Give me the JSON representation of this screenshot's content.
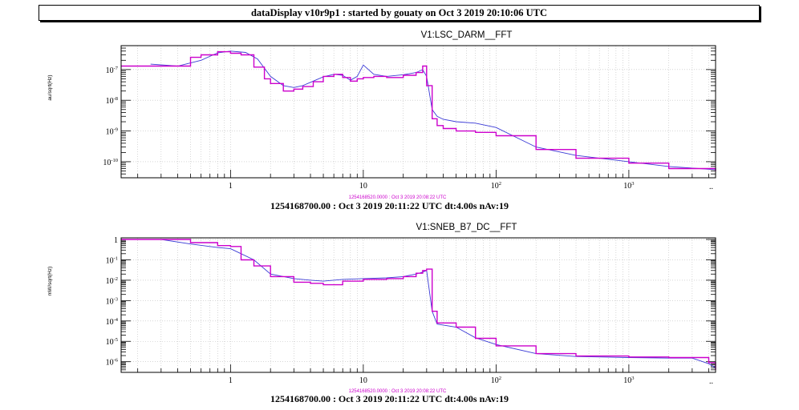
{
  "header": {
    "title": "dataDisplay v10r9p1 : started by gouaty on Oct  3 2019 20:10:06 UTC"
  },
  "colors": {
    "live": "#3b3bd6",
    "reference": "#cc00cc",
    "grid": "#bdbdbd",
    "frame": "#000000"
  },
  "chart_data": [
    {
      "type": "line",
      "title": "V1:LSC_DARM__FFT",
      "ylabel": "au/sqrt(Hz)",
      "xscale": "log",
      "yscale": "log",
      "xlim": [
        0.15,
        4500
      ],
      "ylim": [
        3e-11,
        6e-07
      ],
      "grid": true,
      "x_tick_labels": [
        "1",
        "10",
        "10^2",
        "10^3"
      ],
      "y_tick_labels": [
        "10^-7",
        "10^-8",
        "10^-9",
        "10^-10"
      ],
      "reference_label": "1254168520.0000 : Oct  3 2019 20:08:22 UTC",
      "footer": "1254168700.00 : Oct  3 2019 20:11:22 UTC dt:4.00s nAv:19",
      "axis_more_marker": "..",
      "series": [
        {
          "color": "#3b3bd6",
          "x": [
            0.25,
            0.4,
            0.6,
            0.8,
            1.0,
            1.3,
            1.6,
            2.0,
            2.5,
            3.0,
            3.5,
            4.2,
            5.0,
            6.0,
            7.0,
            8.0,
            9.0,
            10.0,
            12.0,
            15.0,
            20.0,
            25.0,
            28.0,
            30.0,
            33.0,
            36.0,
            40.0,
            50.0,
            70.0,
            100.0,
            200.0,
            400.0,
            1000.0,
            2000.0,
            4500.0
          ],
          "y": [
            1.5e-07,
            1.3e-07,
            2e-07,
            3.5e-07,
            4e-07,
            3.6e-07,
            2.2e-07,
            6e-08,
            3e-08,
            2.6e-08,
            3e-08,
            4.2e-08,
            5.8e-08,
            7e-08,
            6.5e-08,
            4.5e-08,
            6e-08,
            1.4e-07,
            7e-08,
            6e-08,
            6.8e-08,
            8e-08,
            1e-07,
            6e-08,
            5e-09,
            3e-09,
            2.4e-09,
            2e-09,
            1.8e-09,
            1.3e-09,
            3e-10,
            1.6e-10,
            1e-10,
            7e-11,
            5.5e-11
          ]
        },
        {
          "color": "#cc00cc",
          "x": [
            0.15,
            0.3,
            0.5,
            0.6,
            0.8,
            1.0,
            1.2,
            1.5,
            1.8,
            2.0,
            2.5,
            3.0,
            3.5,
            4.2,
            5.0,
            6.0,
            7.0,
            8.0,
            9.0,
            10.0,
            12.0,
            15.0,
            20.0,
            25.0,
            28.0,
            30.0,
            33.0,
            36.0,
            40.0,
            50.0,
            70.0,
            100.0,
            200.0,
            400.0,
            1000.0,
            2000.0,
            4500.0
          ],
          "y": [
            1.3e-07,
            1.3e-07,
            2.5e-07,
            3e-07,
            3.8e-07,
            3.4e-07,
            3e-07,
            1.2e-07,
            5e-08,
            3.5e-08,
            2e-08,
            2.3e-08,
            2.8e-08,
            4e-08,
            6e-08,
            7e-08,
            5.5e-08,
            4.2e-08,
            5e-08,
            5.5e-08,
            6e-08,
            5.5e-08,
            6.5e-08,
            8e-08,
            1.3e-07,
            3e-08,
            2.5e-09,
            1.5e-09,
            1.2e-09,
            1e-09,
            9e-10,
            7e-10,
            2.5e-10,
            1.3e-10,
            9e-11,
            6e-11,
            5e-11
          ]
        }
      ]
    },
    {
      "type": "line",
      "title": "V1:SNEB_B7_DC__FFT",
      "ylabel": "mW/sqrt(Hz)",
      "xscale": "log",
      "yscale": "log",
      "xlim": [
        0.15,
        4500
      ],
      "ylim": [
        3e-07,
        1.2
      ],
      "grid": true,
      "x_tick_labels": [
        "1",
        "10",
        "10^2",
        "10^3"
      ],
      "y_tick_labels": [
        "1",
        "10^-1",
        "10^-2",
        "10^-3",
        "10^-4",
        "10^-5",
        "10^-6"
      ],
      "reference_label": "1254168520.0000 : Oct  3 2019 20:08:22 UTC",
      "footer": "1254168700.00 : Oct  3 2019 20:11:22 UTC dt:4.00s nAv:19",
      "axis_more_marker": "..",
      "series": [
        {
          "color": "#3b3bd6",
          "x": [
            0.15,
            0.3,
            0.5,
            0.8,
            1.0,
            1.2,
            1.5,
            2.0,
            3.0,
            4.0,
            5.0,
            7.0,
            10.0,
            15.0,
            20.0,
            25.0,
            28.0,
            30.0,
            33.0,
            36.0,
            50.0,
            70.0,
            100.0,
            200.0,
            400.0,
            1000.0,
            2000.0,
            3000.0,
            4000.0,
            4500.0
          ],
          "y": [
            1.0,
            1.0,
            0.6,
            0.4,
            0.35,
            0.2,
            0.1,
            0.02,
            0.012,
            0.01,
            0.009,
            0.011,
            0.012,
            0.013,
            0.015,
            0.02,
            0.025,
            0.03,
            0.0003,
            7e-05,
            5e-05,
            1.5e-05,
            7e-06,
            2.5e-06,
            1.8e-06,
            1.6e-06,
            1.5e-06,
            1.5e-06,
            8e-07,
            5e-07
          ]
        },
        {
          "color": "#cc00cc",
          "x": [
            0.15,
            0.3,
            0.5,
            0.8,
            1.0,
            1.2,
            1.5,
            2.0,
            3.0,
            4.0,
            5.0,
            7.0,
            10.0,
            15.0,
            20.0,
            25.0,
            28.0,
            30.0,
            33.0,
            36.0,
            50.0,
            70.0,
            100.0,
            200.0,
            400.0,
            1000.0,
            2000.0,
            3000.0,
            4000.0,
            4500.0
          ],
          "y": [
            1.0,
            1.0,
            0.7,
            0.5,
            0.45,
            0.1,
            0.05,
            0.015,
            0.008,
            0.007,
            0.006,
            0.009,
            0.011,
            0.012,
            0.015,
            0.022,
            0.03,
            0.035,
            0.0003,
            8e-05,
            5e-05,
            1.4e-05,
            6e-06,
            2.5e-06,
            1.9e-06,
            1.7e-06,
            1.6e-06,
            1.6e-06,
            9e-07,
            4e-07
          ]
        }
      ]
    }
  ]
}
